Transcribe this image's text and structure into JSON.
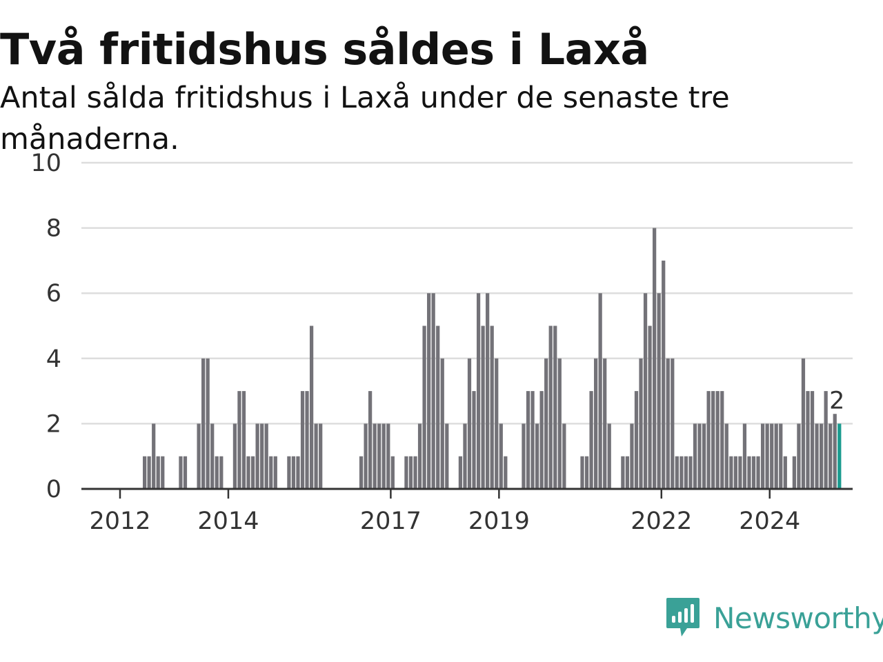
{
  "title": "Två fritidshus såldes i Laxå",
  "subtitle": "Antal sålda fritidshus i Laxå under de senaste tre månaderna.",
  "brand": {
    "name": "Newsworthy",
    "icon": "newsworthy-logo-icon",
    "color": "#3aa197"
  },
  "colors": {
    "bar": "#737278",
    "highlight": "#1a9b8f",
    "grid": "#dddddd",
    "axis": "#333333"
  },
  "chart_data": {
    "type": "bar",
    "x_start": "2012-01",
    "x_end": "2024-10",
    "xticks": [
      "2012",
      "2014",
      "2017",
      "2019",
      "2022",
      "2024"
    ],
    "yticks": [
      "0",
      "2",
      "4",
      "6",
      "8",
      "10"
    ],
    "ylim": [
      0,
      10
    ],
    "grid": true,
    "values": [
      0,
      0,
      0,
      0,
      0,
      1,
      1,
      2,
      1,
      1,
      0,
      0,
      0,
      1,
      1,
      0,
      0,
      2,
      4,
      4,
      2,
      1,
      1,
      0,
      0,
      2,
      3,
      3,
      1,
      1,
      2,
      2,
      2,
      1,
      1,
      0,
      0,
      1,
      1,
      1,
      3,
      3,
      5,
      2,
      2,
      0,
      0,
      0,
      0,
      0,
      0,
      0,
      0,
      1,
      2,
      3,
      2,
      2,
      2,
      2,
      1,
      0,
      0,
      1,
      1,
      1,
      2,
      5,
      6,
      6,
      5,
      4,
      2,
      0,
      0,
      1,
      2,
      4,
      3,
      6,
      5,
      6,
      5,
      4,
      2,
      1,
      0,
      0,
      0,
      2,
      3,
      3,
      2,
      3,
      4,
      5,
      5,
      4,
      2,
      0,
      0,
      0,
      1,
      1,
      3,
      4,
      6,
      4,
      2,
      0,
      0,
      1,
      1,
      2,
      3,
      4,
      6,
      5,
      8,
      6,
      7,
      4,
      4,
      1,
      1,
      1,
      1,
      2,
      2,
      2,
      3,
      3,
      3,
      3,
      2,
      1,
      1,
      1,
      2,
      1,
      1,
      1,
      2,
      2,
      2,
      2,
      2,
      1,
      0,
      1,
      2,
      4,
      3,
      3,
      2,
      2,
      3,
      2,
      2.3,
      2
    ],
    "highlight_label": "2"
  }
}
